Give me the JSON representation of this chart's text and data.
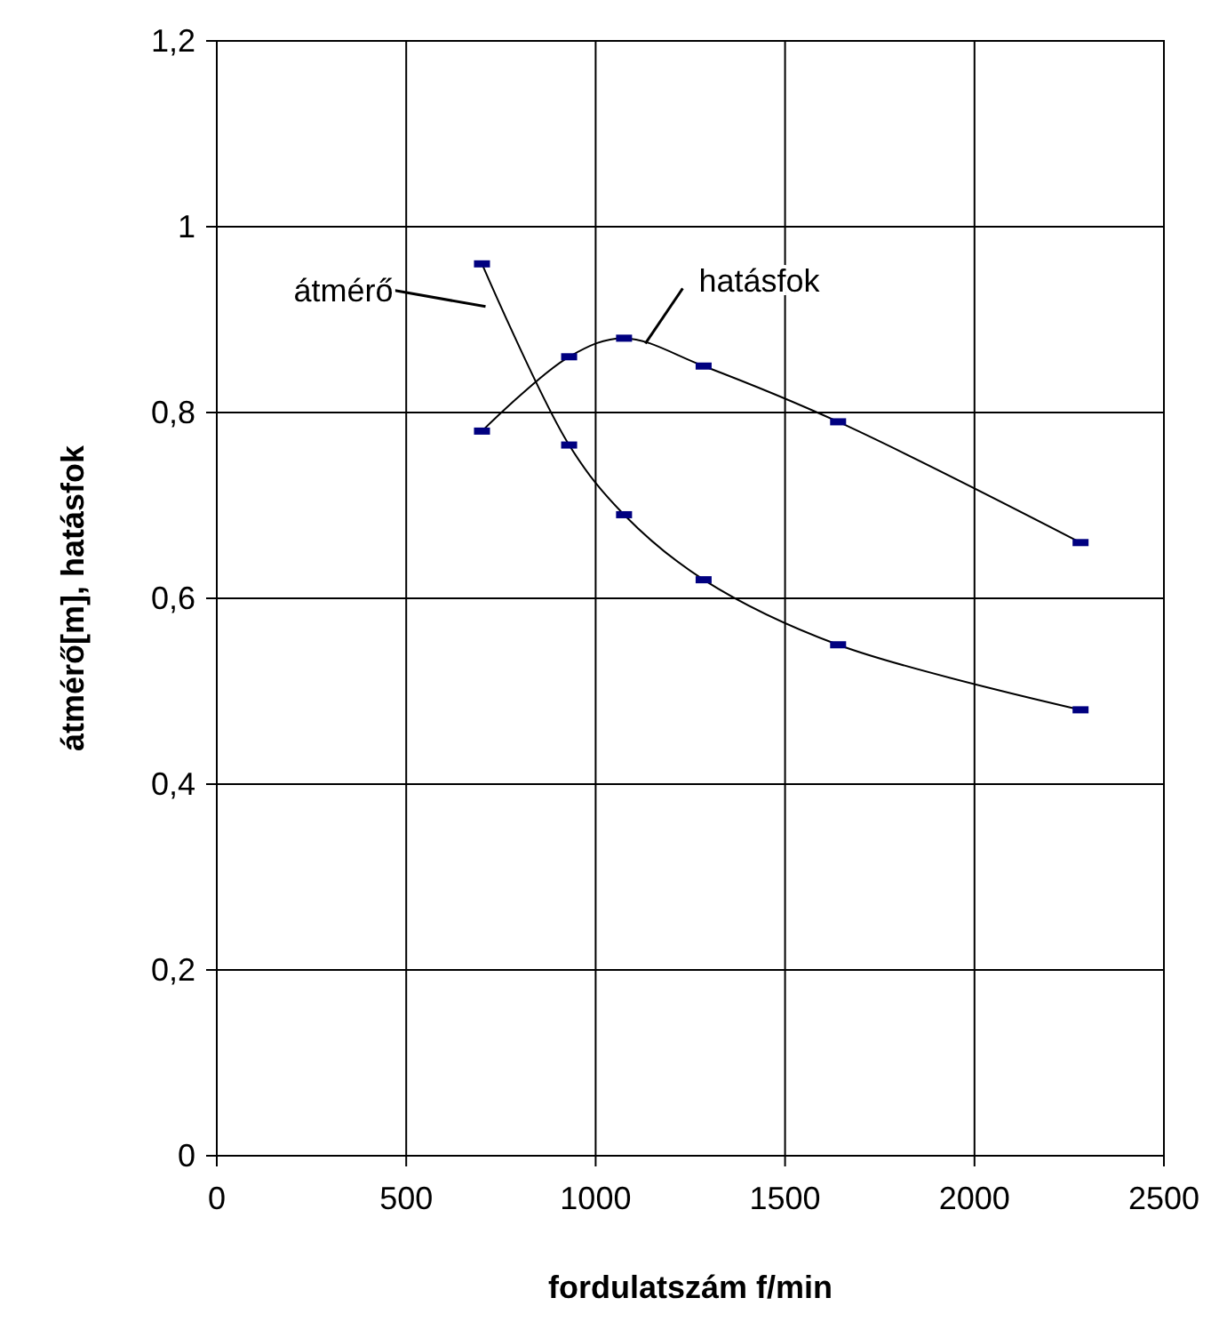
{
  "chart_data": {
    "type": "line",
    "xlabel": "fordulatszám f/min",
    "ylabel": "átmérő[m], hatásfok",
    "x": [
      700,
      930,
      1075,
      1285,
      1640,
      2280
    ],
    "series": [
      {
        "name": "átmérő",
        "color": "#000080",
        "values": [
          0.96,
          0.765,
          0.69,
          0.62,
          0.55,
          0.48
        ]
      },
      {
        "name": "hatásfok",
        "color": "#000080",
        "values": [
          0.78,
          0.86,
          0.88,
          0.85,
          0.79,
          0.66
        ]
      }
    ],
    "xlim": [
      0,
      2500
    ],
    "xticks": [
      0,
      500,
      1000,
      1500,
      2000,
      2500
    ],
    "ylim": [
      0,
      1.2
    ],
    "yticks": [
      0,
      {
        "value": 0.2,
        "label": "0,2"
      },
      {
        "value": 0.4,
        "label": "0,4"
      },
      {
        "value": 0.6,
        "label": "0,6"
      },
      {
        "value": 0.8,
        "label": "0,8"
      },
      1,
      {
        "value": 1.2,
        "label": "1,2"
      }
    ],
    "grid": true,
    "marker": "square",
    "line_style": "solid"
  }
}
